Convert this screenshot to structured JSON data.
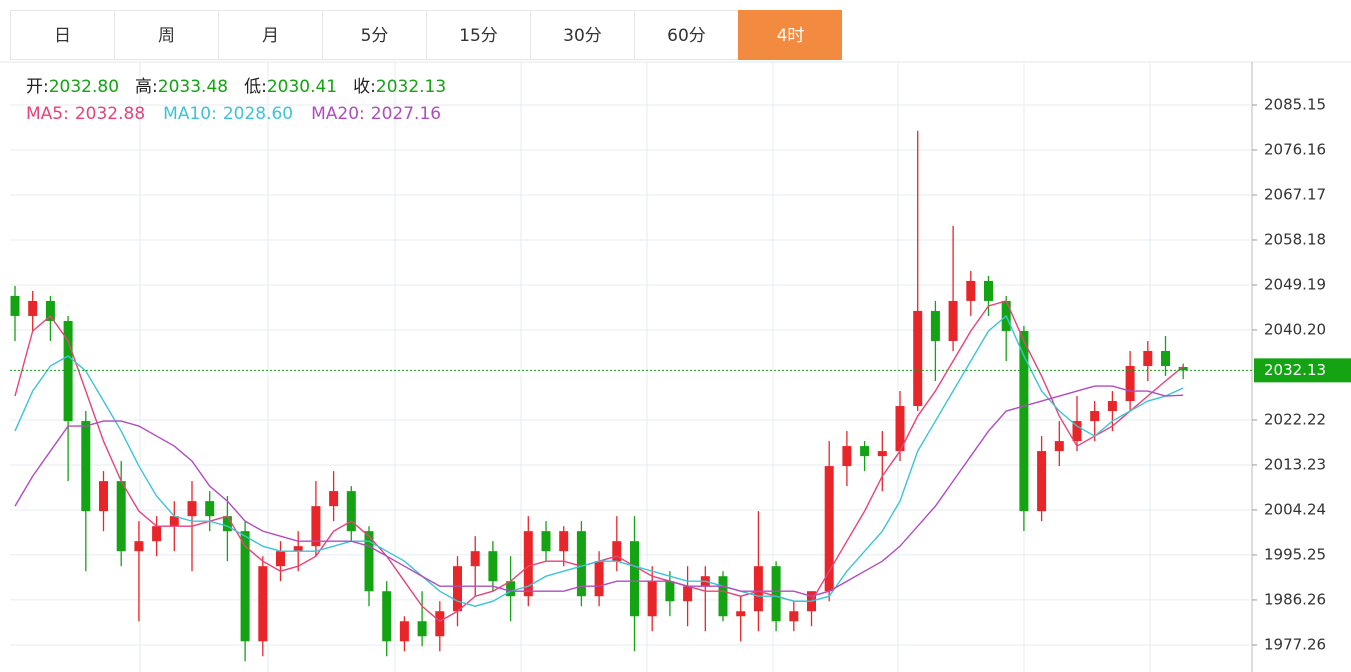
{
  "tabs": [
    "日",
    "周",
    "月",
    "5分",
    "15分",
    "30分",
    "60分",
    "4时"
  ],
  "active_tab": 7,
  "info": [
    {
      "label": "开:",
      "value": "2032.80"
    },
    {
      "label": "高:",
      "value": "2033.48"
    },
    {
      "label": "低:",
      "value": "2030.41"
    },
    {
      "label": "收:",
      "value": "2032.13"
    }
  ],
  "chart_data": {
    "type": "candlestick",
    "up_color": "#e8262a",
    "down_color": "#13a313",
    "ylim": [
      1971.86,
      2093.74
    ],
    "yticks": [
      2085.15,
      2076.16,
      2067.17,
      2058.18,
      2049.19,
      {
        "value": 2040.2,
        "label": "2040.20"
      },
      2022.22,
      2013.23,
      2004.24,
      1995.25,
      1986.26,
      1977.26
    ],
    "grid": true,
    "current_price": 2032.13,
    "candles": {
      "open": [
        2047,
        2043,
        2046,
        2042,
        2022,
        2004,
        2010,
        1996,
        1998,
        2001,
        2003,
        2006,
        2003,
        2000,
        1978,
        1993,
        1996,
        1997,
        2005,
        2008,
        2000,
        1988,
        1978,
        1982,
        1979,
        1984,
        1993,
        1996,
        1990,
        1987,
        2000,
        1996,
        2000,
        1987,
        1994,
        1998,
        1983,
        1990,
        1986,
        1989,
        1991,
        1983,
        1984,
        1993,
        1982,
        1984,
        1988,
        2013,
        2017,
        2015,
        2016,
        2025,
        2044,
        2038,
        2046,
        2050,
        2046,
        2040,
        2004,
        2016,
        2018,
        2022,
        2024,
        2026,
        2033,
        2036,
        2032.8
      ],
      "high": [
        2049,
        2048,
        2047,
        2043,
        2024,
        2012,
        2014,
        2002,
        2003,
        2006,
        2010,
        2008,
        2007,
        2002,
        1995,
        1998,
        2000,
        2010,
        2012,
        2009,
        2001,
        1990,
        1983,
        1988,
        1986,
        1995,
        1999,
        1998,
        1995,
        2003,
        2002,
        2001,
        2002,
        1996,
        2003,
        2003,
        1993,
        1992,
        1993,
        1993,
        1992,
        1987,
        2004,
        1994,
        1986,
        1988,
        2018,
        2020,
        2018,
        2020,
        2028,
        2080,
        2046,
        2061,
        2052,
        2051,
        2047,
        2041,
        2019,
        2022,
        2027,
        2026,
        2028,
        2036,
        2038,
        2039,
        2033.48
      ],
      "low": [
        2038,
        2040,
        2038,
        2010,
        1992,
        2000,
        1993,
        1982,
        1995,
        1996,
        1992,
        2000,
        1994,
        1974,
        1975,
        1990,
        1992,
        1995,
        2002,
        1998,
        1985,
        1975,
        1976,
        1977,
        1976,
        1981,
        1987,
        1988,
        1982,
        1985,
        1994,
        1993,
        1985,
        1985,
        1992,
        1976,
        1980,
        1983,
        1981,
        1980,
        1982,
        1978,
        1980,
        1980,
        1980,
        1981,
        1986,
        2009,
        2012,
        2008,
        2014,
        2024,
        2030,
        2036,
        2043,
        2043,
        2034,
        2000,
        2002,
        2013,
        2016,
        2018,
        2020,
        2024,
        2030,
        2031,
        2030.41
      ],
      "close": [
        2043,
        2046,
        2042,
        2022,
        2004,
        2010,
        1996,
        1998,
        2001,
        2003,
        2006,
        2003,
        2000,
        1978,
        1993,
        1996,
        1997,
        2005,
        2008,
        2000,
        1988,
        1978,
        1982,
        1979,
        1984,
        1993,
        1996,
        1990,
        1987,
        2000,
        1996,
        2000,
        1987,
        1994,
        1998,
        1983,
        1990,
        1986,
        1989,
        1991,
        1983,
        1984,
        1993,
        1982,
        1984,
        1988,
        2013,
        2017,
        2015,
        2016,
        2025,
        2044,
        2038,
        2046,
        2050,
        2046,
        2040,
        2004,
        2016,
        2018,
        2022,
        2024,
        2026,
        2033,
        2036,
        2033,
        2032.13
      ]
    },
    "series": [
      {
        "name": "MA5:",
        "last_label": "2032.88",
        "color": "#e8427a",
        "values": [
          2027,
          2040,
          2043,
          2038,
          2028,
          2018,
          2010,
          2004,
          2001,
          2001,
          2001,
          2002,
          2003,
          1997,
          1994,
          1992,
          1993,
          1995,
          2000,
          2002,
          1999,
          1995,
          1990,
          1985,
          1982,
          1984,
          1987,
          1988,
          1990,
          1993,
          1994,
          1994,
          1993,
          1994,
          1995,
          1993,
          1991,
          1990,
          1989,
          1988,
          1988,
          1987,
          1988,
          1987,
          1986,
          1986,
          1992,
          1998,
          2004,
          2011,
          2016,
          2023,
          2028,
          2034,
          2040,
          2045,
          2046,
          2038,
          2031,
          2023,
          2017,
          2019,
          2021,
          2024,
          2027,
          2030,
          2032.88
        ]
      },
      {
        "name": "MA10:",
        "last_label": "2028.60",
        "color": "#3cc4d6",
        "values": [
          2020,
          2028,
          2033,
          2035,
          2032,
          2026,
          2020,
          2013,
          2007,
          2003,
          2002,
          2002,
          2001,
          1999,
          1997,
          1996,
          1996,
          1996,
          1997,
          1998,
          1998,
          1996,
          1994,
          1991,
          1988,
          1986,
          1985,
          1986,
          1988,
          1989,
          1991,
          1992,
          1993,
          1994,
          1994,
          1993,
          1992,
          1991,
          1990,
          1990,
          1989,
          1988,
          1987,
          1987,
          1986,
          1986,
          1987,
          1992,
          1996,
          2000,
          2006,
          2016,
          2022,
          2028,
          2034,
          2040,
          2043,
          2035,
          2028,
          2024,
          2021,
          2019,
          2022,
          2024,
          2026,
          2027,
          2028.6
        ]
      },
      {
        "name": "MA20:",
        "last_label": "2027.16",
        "color": "#b04cc0",
        "values": [
          2005,
          2011,
          2016,
          2021,
          2021,
          2022,
          2022,
          2021,
          2019,
          2017,
          2014,
          2009,
          2006,
          2002,
          2000,
          1999,
          1998,
          1998,
          1998,
          1998,
          1997,
          1995,
          1993,
          1991,
          1989,
          1989,
          1989,
          1989,
          1988,
          1988,
          1988,
          1988,
          1989,
          1989,
          1990,
          1990,
          1990,
          1990,
          1989,
          1989,
          1989,
          1988,
          1988,
          1988,
          1988,
          1987,
          1988,
          1990,
          1992,
          1994,
          1997,
          2001,
          2005,
          2010,
          2015,
          2020,
          2024,
          2025,
          2026,
          2027,
          2028,
          2029,
          2029,
          2028,
          2028,
          2027,
          2027.16
        ]
      }
    ]
  }
}
